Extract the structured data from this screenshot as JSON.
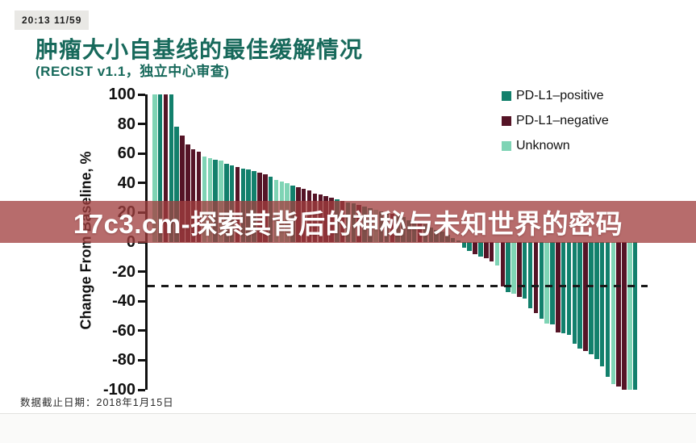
{
  "window": {
    "timestamp": "20:13  11/59"
  },
  "slide": {
    "title": "肿瘤大小自基线的最佳缓解情况",
    "subtitle": "(RECIST v1.1，独立中心审查)",
    "footer": "数据截止日期：2018年1月15日"
  },
  "overlay_banner": {
    "text": "17c3.cm-探索其背后的神秘与未知世界的密码",
    "color": "#a13e3e"
  },
  "legend": [
    {
      "label": "PD-L1–positive",
      "key": "positive"
    },
    {
      "label": "PD-L1–negative",
      "key": "negative"
    },
    {
      "label": "Unknown",
      "key": "unknown"
    }
  ],
  "chart_data": {
    "type": "bar",
    "title": "肿瘤大小自基线的最佳缓解情况 (RECIST v1.1, 独立中心审查)",
    "xlabel": "",
    "ylabel": "Change From Baseline, %",
    "ylim": [
      -100,
      100
    ],
    "yticks": [
      100,
      80,
      60,
      40,
      20,
      0,
      -20,
      -40,
      -60,
      -80,
      -100
    ],
    "grid": false,
    "legend_position": "top-right",
    "reference_line": -30,
    "series_colors": {
      "positive": "#12806c",
      "negative": "#551426",
      "unknown": "#7fd4b5"
    },
    "group_map": {
      "P": "positive",
      "N": "negative",
      "U": "unknown"
    },
    "values": [
      100,
      100,
      100,
      100,
      78,
      72,
      66,
      63,
      61,
      58,
      57,
      56,
      55,
      53,
      52,
      51,
      50,
      49,
      48,
      47,
      46,
      44,
      42,
      41,
      40,
      38,
      37,
      36,
      35,
      33,
      32,
      31,
      30,
      29,
      28,
      27,
      26,
      25,
      24,
      23,
      22,
      21,
      20,
      19,
      18,
      17,
      15,
      14,
      13,
      12,
      10,
      8,
      7,
      5,
      3,
      1,
      -4,
      -6,
      -8,
      -10,
      -11,
      -13,
      -16,
      -30,
      -34,
      -35,
      -37,
      -38,
      -45,
      -48,
      -52,
      -55,
      -56,
      -61,
      -62,
      -63,
      -69,
      -72,
      -74,
      -76,
      -79,
      -84,
      -91,
      -96,
      -98,
      -100,
      -100,
      -100
    ],
    "groups": [
      "U",
      "P",
      "N",
      "P",
      "P",
      "N",
      "N",
      "N",
      "N",
      "U",
      "U",
      "P",
      "U",
      "P",
      "P",
      "N",
      "P",
      "P",
      "P",
      "N",
      "N",
      "P",
      "U",
      "U",
      "U",
      "P",
      "N",
      "N",
      "N",
      "N",
      "N",
      "N",
      "N",
      "P",
      "N",
      "P",
      "P",
      "N",
      "P",
      "P",
      "U",
      "P",
      "P",
      "N",
      "P",
      "P",
      "P",
      "P",
      "N",
      "P",
      "P",
      "P",
      "P",
      "P",
      "P",
      "P",
      "P",
      "P",
      "N",
      "P",
      "N",
      "N",
      "U",
      "N",
      "P",
      "U",
      "N",
      "P",
      "P",
      "N",
      "P",
      "U",
      "P",
      "N",
      "P",
      "P",
      "P",
      "P",
      "N",
      "P",
      "P",
      "P",
      "P",
      "U",
      "N",
      "N",
      "U",
      "P"
    ]
  }
}
